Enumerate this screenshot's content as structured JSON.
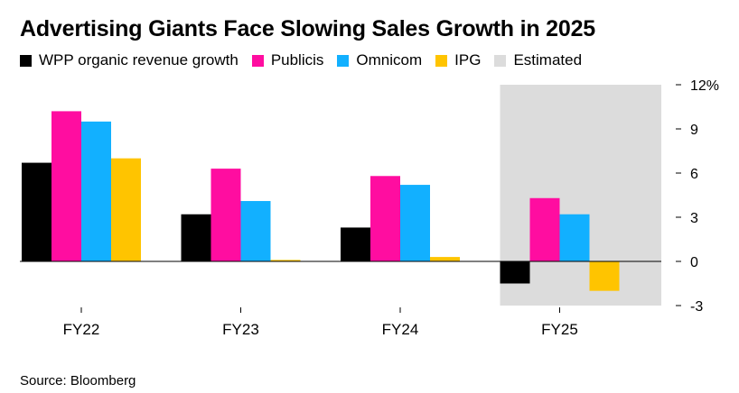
{
  "chart_data": {
    "type": "bar",
    "title": "Advertising Giants Face Slowing Sales Growth in 2025",
    "categories": [
      "FY22",
      "FY23",
      "FY24",
      "FY25"
    ],
    "series": [
      {
        "name": "WPP organic revenue growth",
        "color": "#000000",
        "values": [
          6.7,
          3.2,
          2.3,
          -1.5
        ]
      },
      {
        "name": "Publicis",
        "color": "#ff0da0",
        "values": [
          10.2,
          6.3,
          5.8,
          4.3
        ]
      },
      {
        "name": "Omnicom",
        "color": "#12b0ff",
        "values": [
          9.5,
          4.1,
          5.2,
          3.2
        ]
      },
      {
        "name": "IPG",
        "color": "#ffc400",
        "values": [
          7.0,
          0.1,
          0.3,
          -2.0
        ]
      }
    ],
    "estimated": {
      "label": "Estimated",
      "color": "#dcdcdc",
      "categories": [
        "FY25"
      ]
    },
    "y_ticks": [
      {
        "value": 12,
        "label": "12%"
      },
      {
        "value": 9,
        "label": "9"
      },
      {
        "value": 6,
        "label": "6"
      },
      {
        "value": 3,
        "label": "3"
      },
      {
        "value": 0,
        "label": "0"
      },
      {
        "value": -3,
        "label": "-3"
      }
    ],
    "ylim": [
      -3,
      12
    ],
    "xlabel": "",
    "ylabel": "",
    "legend": "top-left"
  },
  "source": "Source: Bloomberg"
}
